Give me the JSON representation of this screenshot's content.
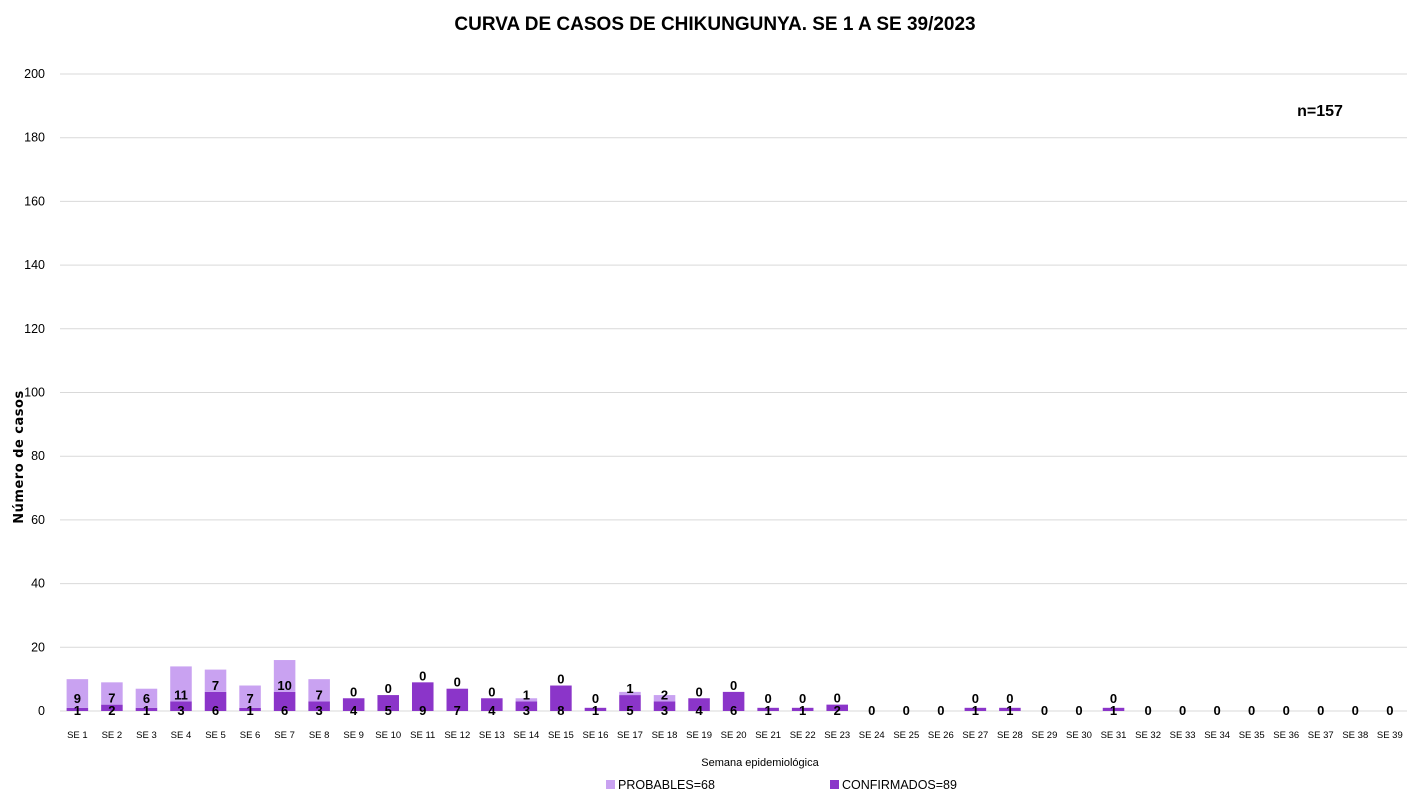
{
  "chart_data": {
    "type": "bar",
    "stacked": true,
    "title": "CURVA DE CASOS DE CHIKUNGUNYA. SE 1 A SE 39/2023",
    "xlabel": "Semana epidemiológica",
    "ylabel": "Número de casos",
    "ylim": [
      0,
      200
    ],
    "yticks": [
      0,
      20,
      40,
      60,
      80,
      100,
      120,
      140,
      160,
      180,
      200
    ],
    "grid": true,
    "legend_position": "bottom",
    "annotation": "n=157",
    "categories": [
      "SE 1",
      "SE 2",
      "SE 3",
      "SE 4",
      "SE 5",
      "SE 6",
      "SE 7",
      "SE 8",
      "SE 9",
      "SE 10",
      "SE 11",
      "SE 12",
      "SE 13",
      "SE 14",
      "SE 15",
      "SE 16",
      "SE 17",
      "SE 18",
      "SE 19",
      "SE 20",
      "SE 21",
      "SE 22",
      "SE 23",
      "SE 24",
      "SE 25",
      "SE 26",
      "SE 27",
      "SE 28",
      "SE 29",
      "SE 30",
      "SE 31",
      "SE 32",
      "SE 33",
      "SE 34",
      "SE 35",
      "SE 36",
      "SE 37",
      "SE 38",
      "SE 39"
    ],
    "series": [
      {
        "name": "CONFIRMADOS=89",
        "color": "#8b35c9",
        "values": [
          1,
          2,
          1,
          3,
          6,
          1,
          6,
          3,
          4,
          5,
          9,
          7,
          4,
          3,
          8,
          1,
          5,
          3,
          4,
          6,
          1,
          1,
          2,
          0,
          0,
          0,
          1,
          1,
          0,
          0,
          1,
          0,
          0,
          0,
          0,
          0,
          0,
          0,
          0
        ]
      },
      {
        "name": "PROBABLES=68",
        "color": "#c9a2f1",
        "values": [
          9,
          7,
          6,
          11,
          7,
          7,
          10,
          7,
          0,
          0,
          0,
          0,
          0,
          1,
          0,
          0,
          1,
          2,
          0,
          0,
          0,
          0,
          0,
          0,
          0,
          0,
          0,
          0,
          0,
          0,
          0,
          0,
          0,
          0,
          0,
          0,
          0,
          0,
          0
        ]
      }
    ]
  }
}
